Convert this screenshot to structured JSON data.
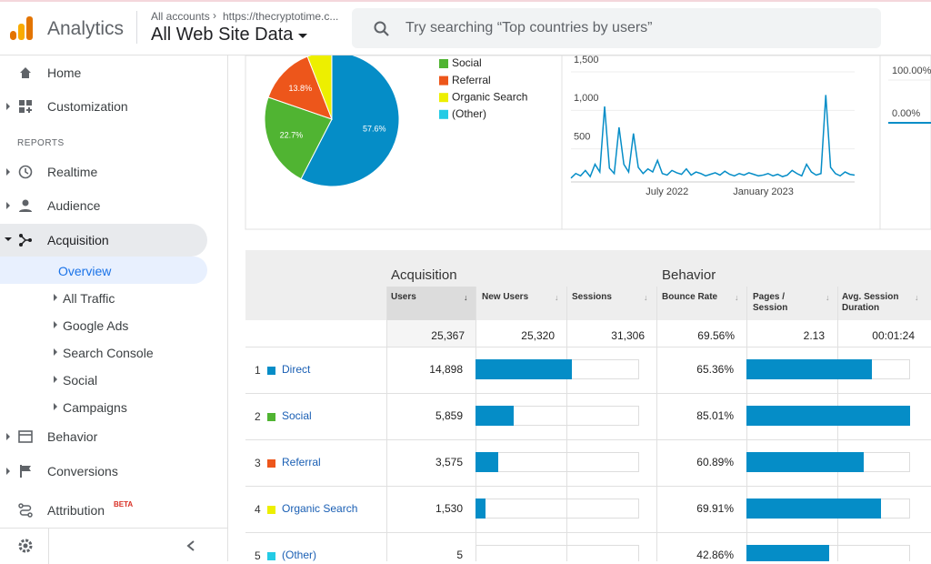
{
  "header": {
    "product": "Analytics",
    "breadcrumb": "All accounts",
    "property": "https://thecryptotime.c...",
    "view": "All Web Site Data",
    "search_placeholder": "Try searching “Top countries by users”"
  },
  "sidebar": {
    "home": "Home",
    "customization": "Customization",
    "section": "REPORTS",
    "realtime": "Realtime",
    "audience": "Audience",
    "acquisition": "Acquisition",
    "acquisition_items": [
      "Overview",
      "All Traffic",
      "Google Ads",
      "Search Console",
      "Social",
      "Campaigns"
    ],
    "behavior": "Behavior",
    "conversions": "Conversions",
    "attribution": "Attribution",
    "badge": "BETA"
  },
  "pie": {
    "type": "pie",
    "slices": [
      {
        "color": "#058dc7",
        "value": 57.6,
        "label": "57.6%"
      },
      {
        "name": "Social",
        "color": "#50b432",
        "value": 22.7,
        "label": "22.7%"
      },
      {
        "name": "Referral",
        "color": "#ed561b",
        "value": 13.8,
        "label": "13.8%"
      },
      {
        "name": "Organic Search",
        "color": "#edef00",
        "value": 5.9
      },
      {
        "name": "(Other)",
        "color": "#24cbe5",
        "value": 0.02
      }
    ]
  },
  "line": {
    "type": "line",
    "color": "#058dc7",
    "categories": [
      null,
      null,
      null,
      null,
      null,
      null,
      null,
      null,
      null,
      null,
      null,
      null,
      null,
      null,
      null,
      null,
      null,
      null,
      null,
      null,
      "July 2022",
      null,
      null,
      null,
      null,
      null,
      null,
      null,
      null,
      null,
      null,
      null,
      null,
      null,
      null,
      null,
      null,
      null,
      null,
      null,
      "January 2023",
      null,
      null,
      null,
      null,
      null,
      null,
      null,
      null,
      null,
      null,
      null,
      null,
      null,
      null,
      null,
      null,
      null,
      null,
      null
    ],
    "values": [
      120,
      180,
      150,
      220,
      140,
      300,
      200,
      1050,
      250,
      180,
      780,
      300,
      200,
      700,
      260,
      180,
      240,
      200,
      350,
      180,
      160,
      220,
      190,
      170,
      240,
      160,
      200,
      180,
      150,
      170,
      190,
      160,
      210,
      170,
      150,
      180,
      160,
      190,
      170,
      150,
      160,
      180,
      150,
      170,
      140,
      160,
      220,
      180,
      150,
      300,
      200,
      160,
      180,
      1200,
      260,
      180,
      150,
      200,
      170,
      160
    ],
    "ylim": [
      0,
      1500
    ],
    "yticks": [
      500,
      {
        "value": 1000,
        "label": "1,000"
      },
      {
        "value": 1500,
        "label": "1,500"
      }
    ]
  },
  "mini": {
    "type": "line",
    "color": "#058dc7",
    "values": [
      0,
      0
    ],
    "ylim": [
      0,
      100
    ],
    "yticks": [
      {
        "value": 100,
        "label": "100.00%"
      },
      {
        "value": 0,
        "label": "0.00%"
      }
    ]
  },
  "table": {
    "groups": [
      "Acquisition",
      "Behavior"
    ],
    "columns": [
      "Users",
      "New Users",
      "Sessions",
      "Bounce Rate",
      "Pages / Session",
      "Avg. Session Duration"
    ],
    "totals": {
      "users": {
        "value": 25367,
        "label": "25,367"
      },
      "new_users": "25,320",
      "sessions": "31,306",
      "bounce_rate": "69.56%",
      "pages_per_session": "2.13",
      "avg_duration": "00:01:24"
    },
    "rows": [
      {
        "rank": 1,
        "name": "Direct",
        "color": "#058dc7",
        "users": {
          "value": 14898,
          "label": "14,898"
        },
        "bounce_rate": {
          "value": 65.36,
          "label": "65.36%"
        }
      },
      {
        "rank": 2,
        "name": "Social",
        "color": "#50b432",
        "users": {
          "value": 5859,
          "label": "5,859"
        },
        "bounce_rate": {
          "value": 85.01,
          "label": "85.01%"
        }
      },
      {
        "rank": 3,
        "name": "Referral",
        "color": "#ed561b",
        "users": {
          "value": 3575,
          "label": "3,575"
        },
        "bounce_rate": {
          "value": 60.89,
          "label": "60.89%"
        }
      },
      {
        "rank": 4,
        "name": "Organic Search",
        "color": "#edef00",
        "users": {
          "value": 1530,
          "label": "1,530"
        },
        "bounce_rate": {
          "value": 69.91,
          "label": "69.91%"
        }
      },
      {
        "rank": 5,
        "name": "(Other)",
        "color": "#24cbe5",
        "users": {
          "value": 5,
          "label": "5"
        },
        "bounce_rate": {
          "value": 42.86,
          "label": "42.86%"
        }
      }
    ]
  }
}
